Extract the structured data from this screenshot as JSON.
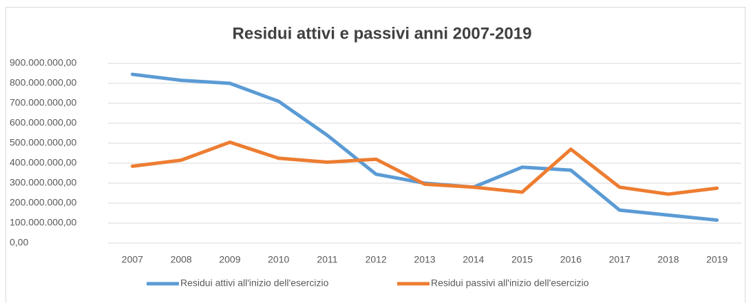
{
  "chart_data": {
    "type": "line",
    "title": "Residui attivi e passivi anni 2007-2019",
    "categories": [
      "2007",
      "2008",
      "2009",
      "2010",
      "2011",
      "2012",
      "2013",
      "2014",
      "2015",
      "2016",
      "2017",
      "2018",
      "2019"
    ],
    "series": [
      {
        "name": "Residui attivi all'inizio dell'esercizio",
        "color": "#5b9bd5",
        "values": [
          845000000,
          815000000,
          800000000,
          710000000,
          540000000,
          345000000,
          300000000,
          280000000,
          380000000,
          365000000,
          165000000,
          140000000,
          115000000
        ]
      },
      {
        "name": "Residui passivi all'inizio dell'esercizio",
        "color": "#ed7d31",
        "values": [
          385000000,
          415000000,
          505000000,
          425000000,
          405000000,
          420000000,
          295000000,
          280000000,
          255000000,
          470000000,
          280000000,
          245000000,
          275000000
        ]
      }
    ],
    "ylim": [
      0,
      900000000
    ],
    "yticks": [
      {
        "value": 0,
        "label": "0,00"
      },
      {
        "value": 100000000,
        "label": "100.000.000,00"
      },
      {
        "value": 200000000,
        "label": "200.000.000,00"
      },
      {
        "value": 300000000,
        "label": "300.000.000,00"
      },
      {
        "value": 400000000,
        "label": "400.000.000,00"
      },
      {
        "value": 500000000,
        "label": "500.000.000,00"
      },
      {
        "value": 600000000,
        "label": "600.000.000,00"
      },
      {
        "value": 700000000,
        "label": "700.000.000,00"
      },
      {
        "value": 800000000,
        "label": "800.000.000,00"
      },
      {
        "value": 900000000,
        "label": "900.000.000,00"
      }
    ],
    "grid": true,
    "legend": "bottom"
  }
}
